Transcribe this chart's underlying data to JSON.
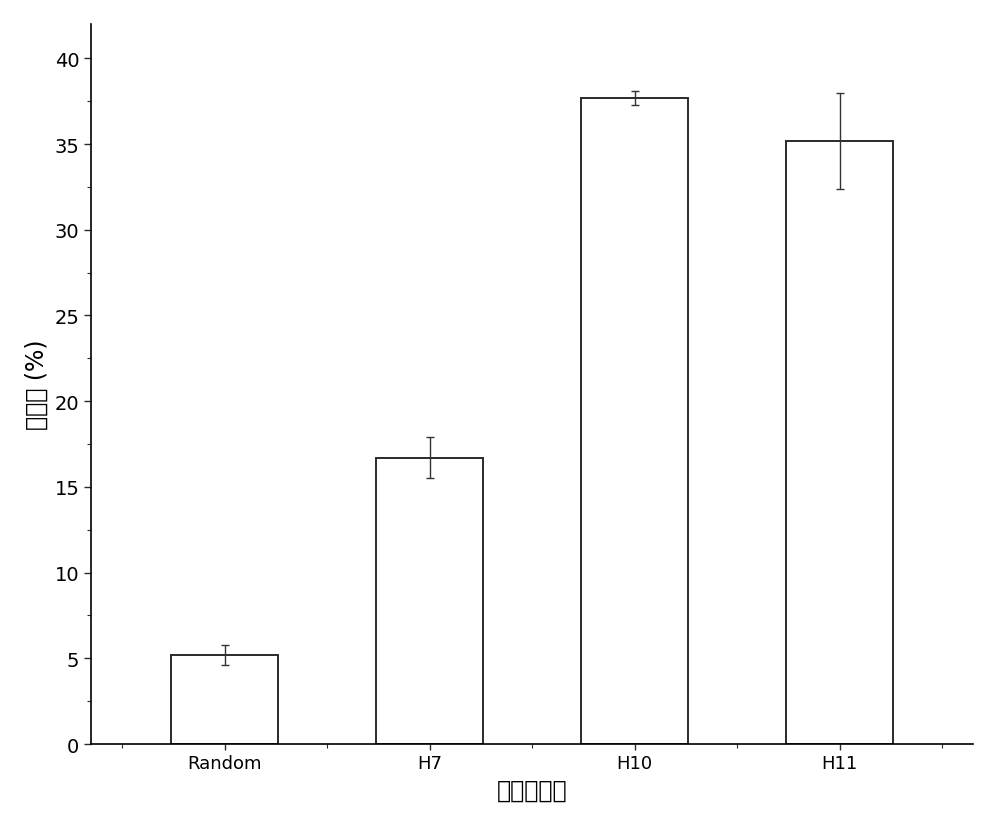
{
  "categories": [
    "Random",
    "H7",
    "H10",
    "H11"
  ],
  "values": [
    5.2,
    16.7,
    37.7,
    35.2
  ],
  "errors": [
    0.6,
    1.2,
    0.4,
    2.8
  ],
  "bar_color": "#ffffff",
  "bar_edgecolor": "#2a2a2a",
  "bar_linewidth": 1.4,
  "bar_width": 0.52,
  "ylabel": "抑菌率 (%)",
  "xlabel": "核酸适配体",
  "ylim": [
    0,
    42
  ],
  "yticks": [
    0,
    5,
    10,
    15,
    20,
    25,
    30,
    35,
    40
  ],
  "ylabel_fontsize": 17,
  "xlabel_fontsize": 17,
  "tick_fontsize": 14,
  "xtick_fontsize": 13,
  "errorbar_color": "#333333",
  "errorbar_linewidth": 1.0,
  "errorbar_capsize": 3,
  "errorbar_capthick": 1.0,
  "spine_linewidth": 1.2,
  "background_color": "#ffffff"
}
